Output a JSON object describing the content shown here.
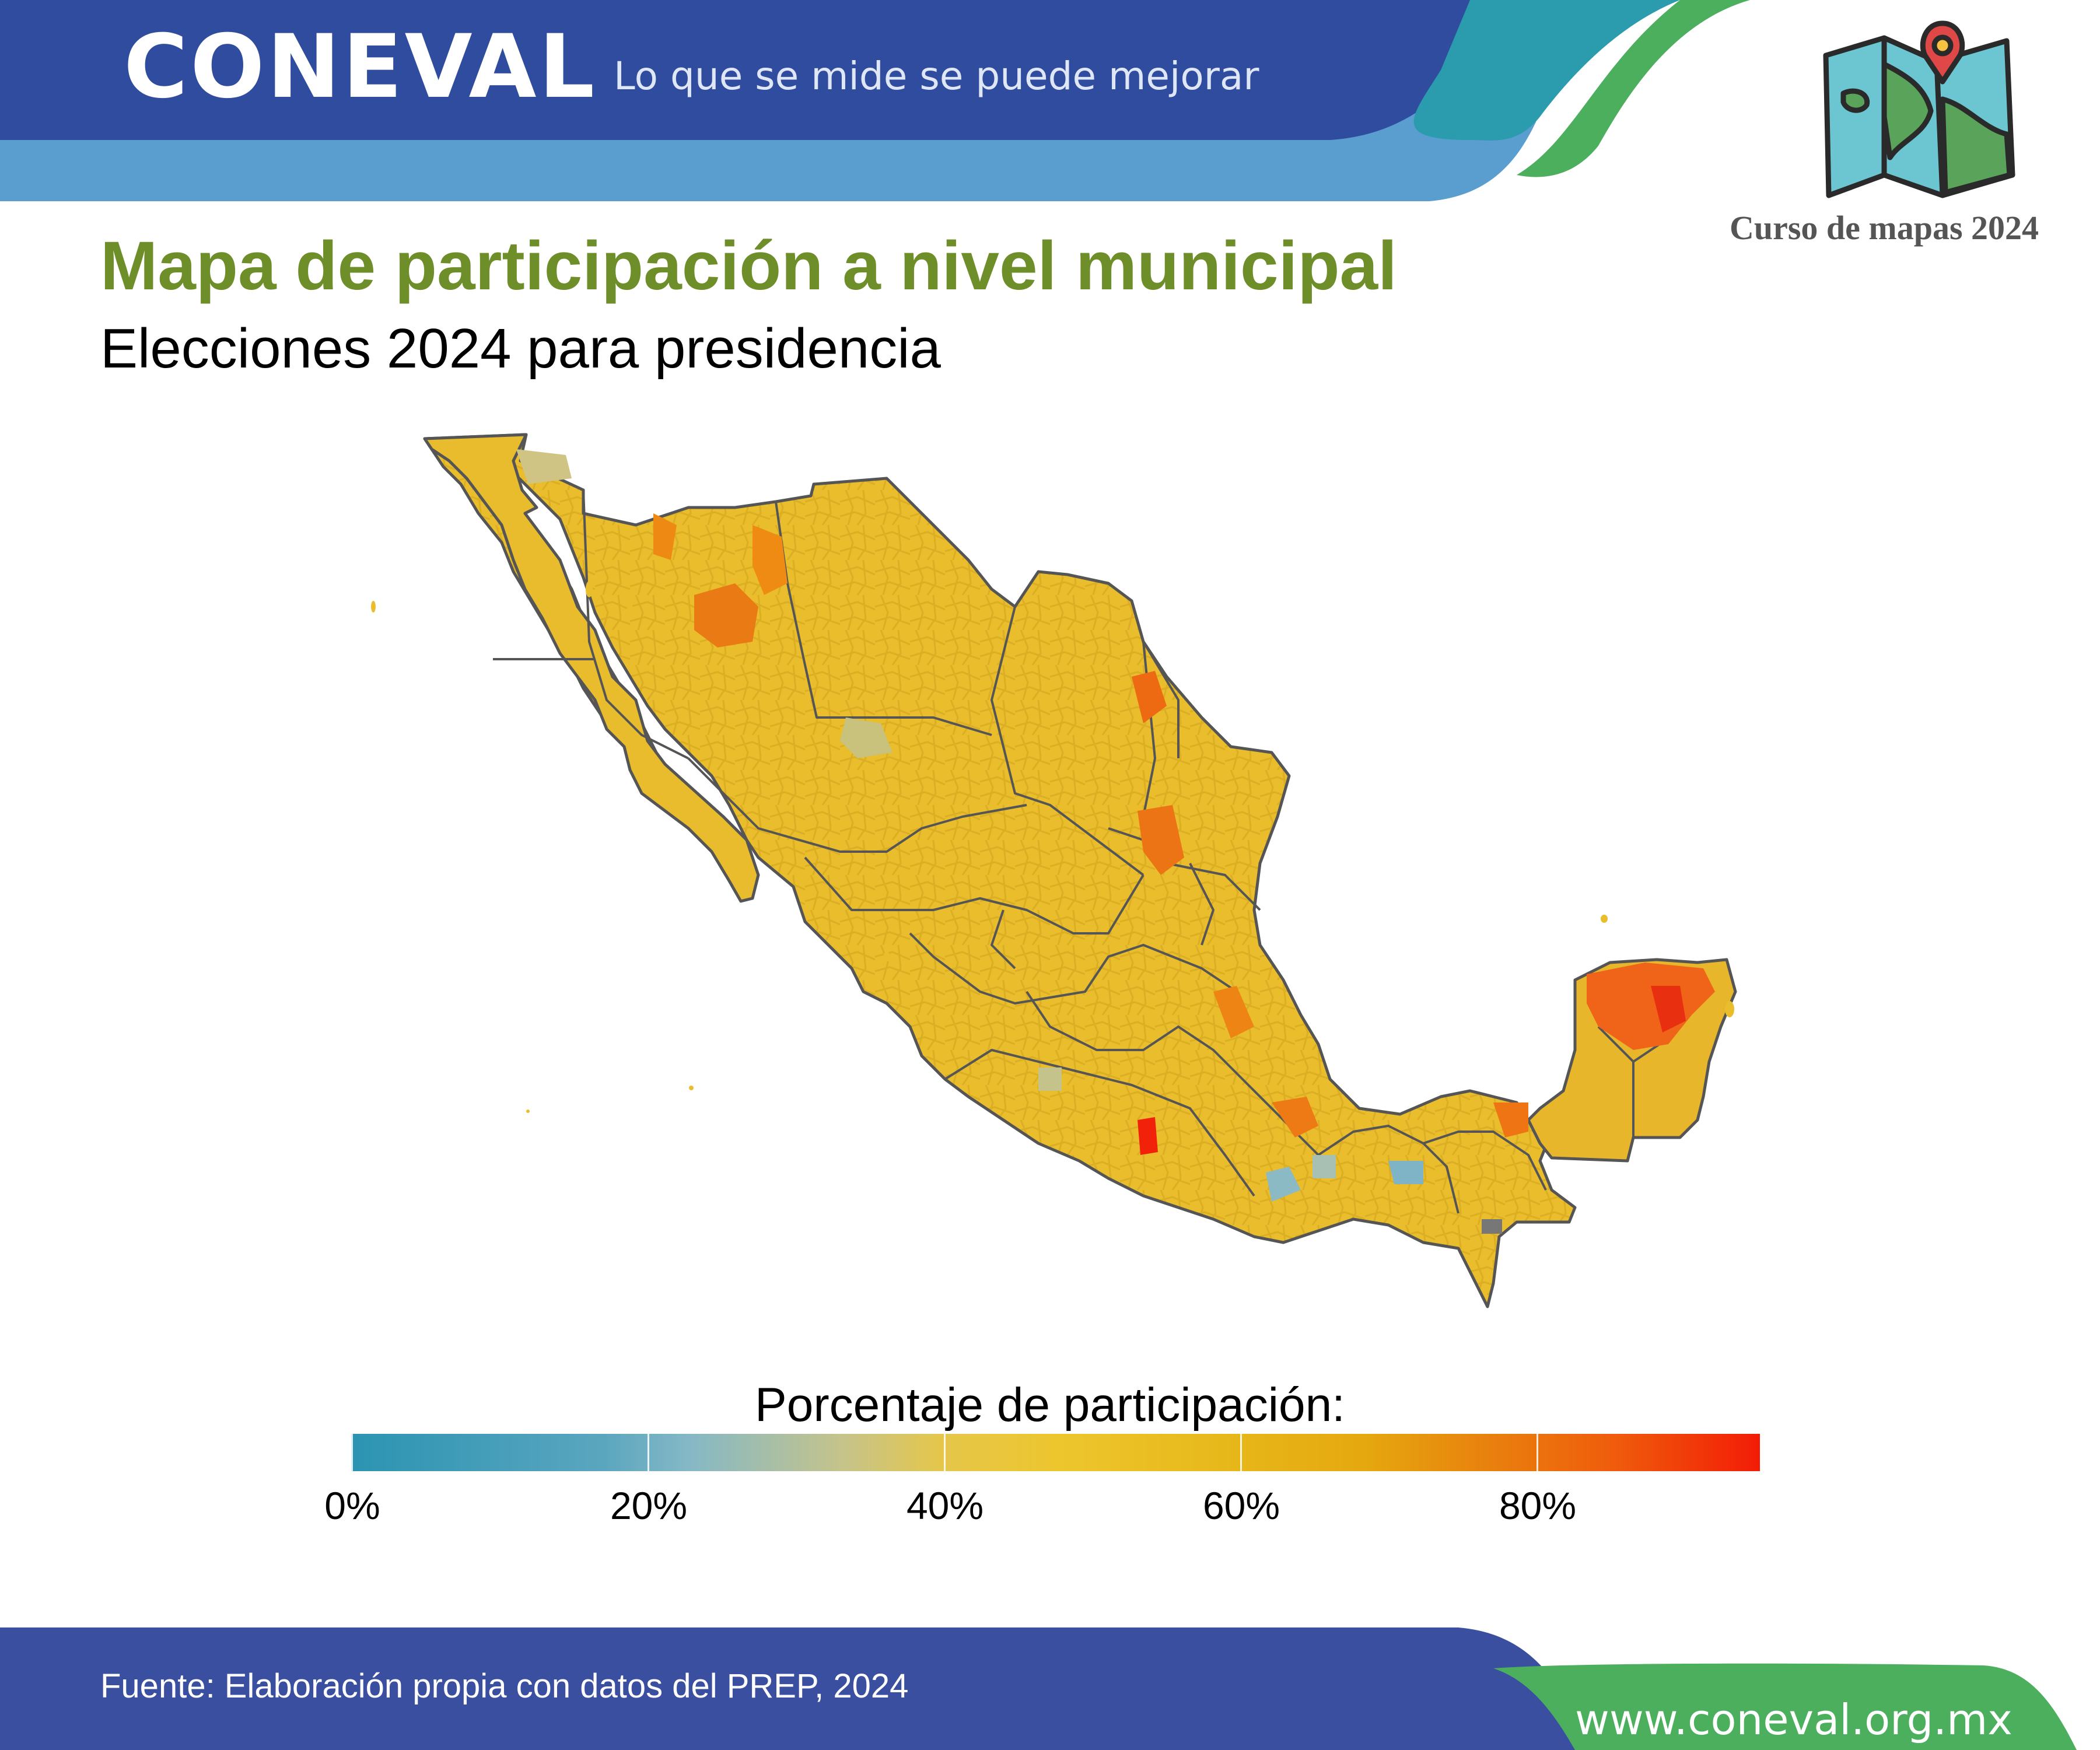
{
  "header": {
    "logo": "CONEVAL",
    "tagline": "Lo que se mide se puede mejorar",
    "course_label": "Curso de mapas 2024"
  },
  "main": {
    "title": "Mapa de participación a nivel municipal",
    "subtitle": "Elecciones 2024 para presidencia"
  },
  "map": {
    "country": "México",
    "fill_palette": {
      "low": "#2b94b2",
      "mid": "#edc62e",
      "high": "#f21c06"
    },
    "state_border_color": "#555555"
  },
  "legend": {
    "title": "Porcentaje de participación:",
    "ticks": [
      "0%",
      "20%",
      "40%",
      "60%",
      "80%"
    ],
    "range": [
      0,
      95
    ]
  },
  "footer": {
    "source": "Fuente: Elaboración propia con datos del PREP, 2024",
    "website": "www.coneval.org.mx"
  },
  "colors": {
    "header_blue": "#2f4c9e",
    "header_light_blue": "#5ba0d0",
    "header_teal": "#2a9cae",
    "accent_green": "#4caf5e",
    "title_green": "#6e8e2a",
    "footer_blue": "#3a4fa0"
  }
}
